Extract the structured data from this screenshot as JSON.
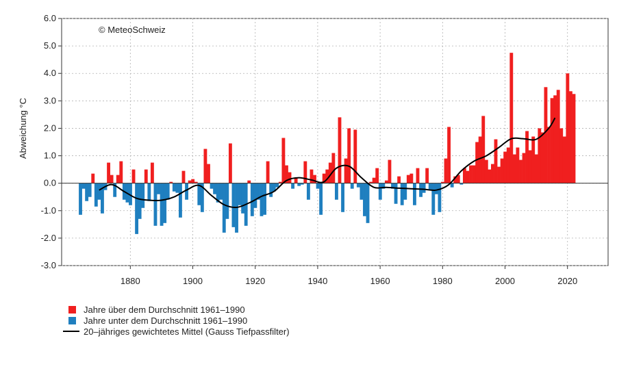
{
  "chart_data": {
    "type": "bar",
    "copyright": "© MeteoSchweiz",
    "ylabel": "Abweichung °C",
    "ylim": [
      -3.0,
      6.0
    ],
    "yticks": [
      "-3.0",
      "-2.0",
      "-1.0",
      "0.0",
      "1.0",
      "2.0",
      "3.0",
      "4.0",
      "5.0",
      "6.0"
    ],
    "xlim": [
      1858,
      2033
    ],
    "xticks": [
      "1880",
      "1900",
      "1920",
      "1940",
      "1960",
      "1980",
      "2000",
      "2020"
    ],
    "grid": true,
    "legend_position": "bottom-left",
    "colors": {
      "above": "#f01f1f",
      "below": "#1f7fbf",
      "line": "#000000"
    },
    "series": [
      {
        "name": "Jahre über dem Durchschnitt 1961–1990",
        "kind": "bars-above"
      },
      {
        "name": "Jahre unter dem Durchschnitt 1961–1990",
        "kind": "bars-below"
      },
      {
        "name": "20–jähriges gewichtetes Mittel (Gauss Tiefpassfilter)",
        "kind": "line"
      }
    ],
    "start_year": 1864,
    "values": [
      -1.15,
      -0.2,
      -0.65,
      -0.5,
      0.35,
      -0.85,
      -0.6,
      -1.1,
      -0.25,
      0.75,
      0.3,
      -0.5,
      0.3,
      0.8,
      -0.6,
      -0.7,
      -0.8,
      0.5,
      -1.85,
      -1.3,
      -0.9,
      0.5,
      -0.65,
      0.75,
      -1.55,
      -0.4,
      -1.55,
      -1.45,
      -0.6,
      0.05,
      -0.3,
      -0.35,
      -1.25,
      0.45,
      -0.6,
      0.1,
      0.15,
      0.05,
      -0.8,
      -1.05,
      1.25,
      0.7,
      -0.2,
      -0.4,
      -0.7,
      -0.6,
      -1.8,
      -1.3,
      1.45,
      -1.6,
      -1.8,
      -0.8,
      -1.1,
      -1.55,
      0.1,
      -1.2,
      -0.9,
      -0.6,
      -1.2,
      -1.15,
      0.8,
      -0.5,
      -0.3,
      -0.15,
      0.05,
      1.65,
      0.65,
      0.4,
      -0.2,
      0.2,
      -0.1,
      -0.05,
      0.8,
      -0.6,
      0.5,
      0.3,
      -0.2,
      -1.15,
      0.35,
      0.5,
      0.75,
      1.1,
      -0.6,
      2.4,
      -1.05,
      0.9,
      2.0,
      -0.2,
      1.95,
      -0.15,
      -0.6,
      -1.2,
      -1.45,
      0.05,
      0.2,
      0.55,
      -0.6,
      -0.2,
      0.1,
      0.85,
      -0.2,
      -0.75,
      0.25,
      -0.8,
      -0.6,
      0.3,
      0.35,
      -0.8,
      0.55,
      -0.5,
      -0.35,
      0.55,
      -0.25,
      -1.15,
      -0.4,
      -1.05,
      0.05,
      0.9,
      2.05,
      -0.15,
      0.25,
      0.3,
      -0.05,
      0.55,
      0.45,
      0.65,
      0.65,
      1.5,
      1.7,
      2.45,
      0.85,
      0.5,
      0.7,
      1.6,
      0.6,
      0.9,
      1.15,
      1.3,
      4.75,
      1.05,
      1.3,
      0.85,
      1.1,
      1.9,
      1.2,
      1.7,
      1.05,
      2.0,
      1.85,
      3.5,
      2.05,
      3.1,
      3.2,
      3.4,
      2.0,
      1.7,
      4.0,
      3.35,
      3.25
    ],
    "smoothed": {
      "x": [
        1870,
        1874,
        1878,
        1882,
        1886,
        1890,
        1894,
        1898,
        1902,
        1906,
        1910,
        1914,
        1918,
        1922,
        1926,
        1930,
        1934,
        1938,
        1942,
        1946,
        1950,
        1954,
        1958,
        1962,
        1966,
        1970,
        1974,
        1978,
        1982,
        1986,
        1990,
        1994,
        1998,
        2002,
        2006,
        2010,
        2014,
        2016
      ],
      "y": [
        -0.25,
        -0.05,
        -0.3,
        -0.55,
        -0.62,
        -0.62,
        -0.5,
        -0.25,
        -0.08,
        -0.45,
        -0.78,
        -0.88,
        -0.72,
        -0.48,
        -0.3,
        0.1,
        0.2,
        0.12,
        0.05,
        0.55,
        0.62,
        0.2,
        -0.15,
        -0.15,
        -0.18,
        -0.2,
        -0.22,
        -0.25,
        -0.05,
        0.45,
        0.8,
        1.0,
        1.3,
        1.62,
        1.62,
        1.6,
        2.0,
        2.38
      ]
    }
  }
}
